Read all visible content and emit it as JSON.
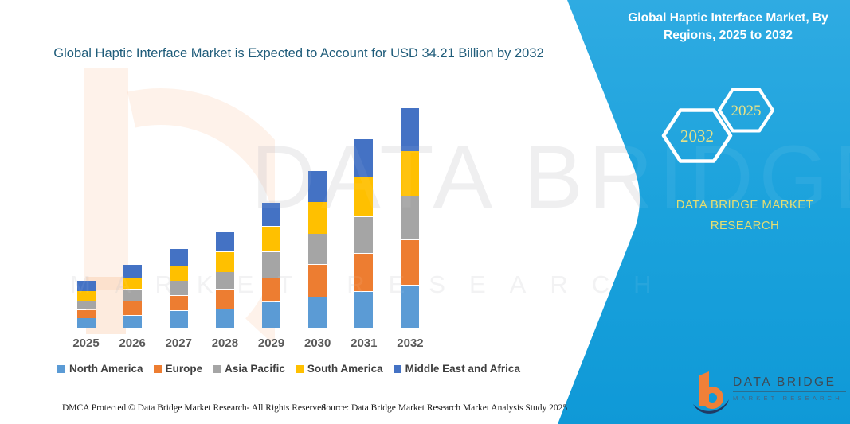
{
  "header": {
    "title": "Global Haptic Interface Market is Expected to Account for USD 34.21 Billion by 2032",
    "title_color": "#1F5C7A"
  },
  "side_panel": {
    "title": "Global Haptic Interface Market, By Regions, 2025 to 2032",
    "background_top": "#2FABE2",
    "background_bottom": "#0F99D7",
    "hexagons": [
      {
        "label": "2032"
      },
      {
        "label": "2025"
      }
    ],
    "hexagon_text_color": "#E6E187",
    "brand_line1": "DATA BRIDGE MARKET",
    "brand_line2": "RESEARCH",
    "brand_text_color": "#E6DE71"
  },
  "logo": {
    "title": "DATA BRIDGE",
    "subtitle": "MARKET RESEARCH",
    "b_color": "#F08038",
    "swoosh_color": "#203A64"
  },
  "watermark": {
    "big_text": "DATA BRIDGE",
    "spaced_text": "MARKET RESEARCH"
  },
  "footer": {
    "left": "DMCA Protected © Data Bridge Market Research-  All Rights Reserved.",
    "right": "Source: Data Bridge Market Research  Market Analysis Study 2025"
  },
  "chart_data": {
    "type": "bar",
    "stacked": true,
    "title": "Global Haptic Interface Market is Expected to Account for USD 34.21 Billion by 2032",
    "unit": "USD Billion",
    "anchor_value": {
      "year": "2032",
      "total": 34.21
    },
    "categories": [
      "2025",
      "2026",
      "2027",
      "2028",
      "2029",
      "2030",
      "2031",
      "2032"
    ],
    "series": [
      {
        "name": "North America",
        "color": "#5B9BD5",
        "values": [
          1.57,
          1.98,
          2.72,
          2.96,
          4.08,
          4.9,
          5.68,
          6.71
        ]
      },
      {
        "name": "Europe",
        "color": "#ED7D31",
        "values": [
          1.32,
          2.22,
          2.38,
          3.09,
          3.79,
          5.03,
          5.97,
          7.0
        ]
      },
      {
        "name": "Asia Pacific",
        "color": "#A5A5A5",
        "values": [
          1.36,
          1.85,
          2.26,
          2.68,
          4.04,
          4.73,
          5.64,
          6.79
        ]
      },
      {
        "name": "South America",
        "color": "#FFC000",
        "values": [
          1.52,
          1.73,
          2.35,
          3.17,
          3.91,
          4.94,
          6.18,
          7.0
        ]
      },
      {
        "name": "Middle East and Africa",
        "color": "#4472C4",
        "values": [
          1.64,
          2.1,
          2.59,
          3.0,
          3.7,
          4.85,
          5.93,
          6.71
        ]
      }
    ],
    "xlabel": "",
    "ylabel": "",
    "y_axis_visible": false,
    "grid": false,
    "legend_position": "bottom"
  }
}
